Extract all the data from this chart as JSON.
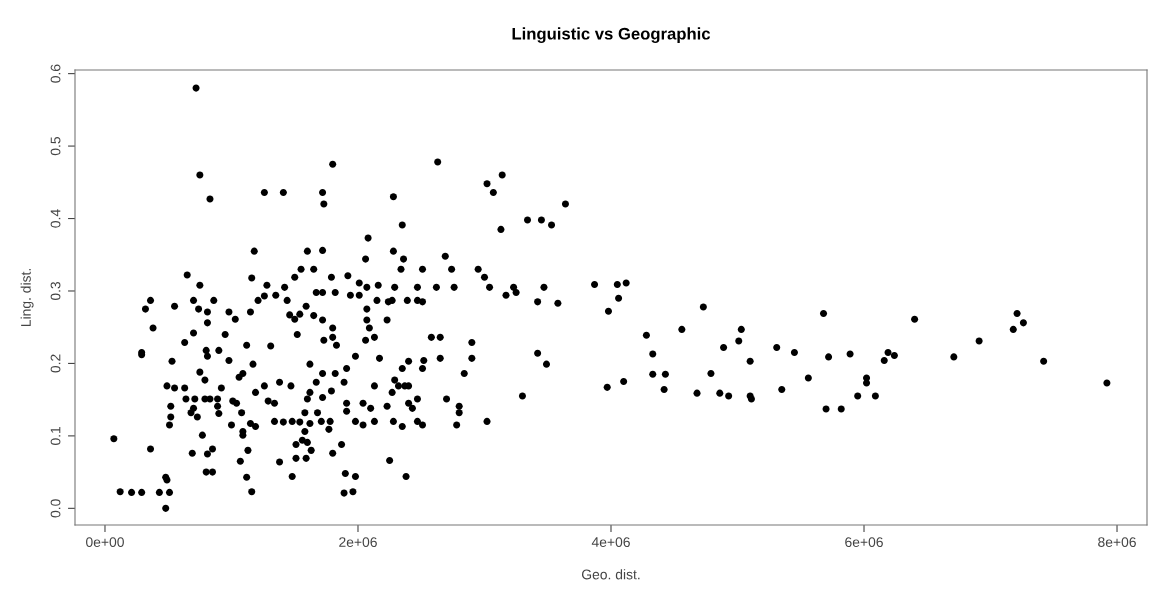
{
  "chart_data": {
    "type": "scatter",
    "title": "Linguistic vs Geographic",
    "xlabel": "Geo. dist.",
    "ylabel": "Ling. dist.",
    "xlim": [
      -237000,
      8237000
    ],
    "ylim": [
      -0.023,
      0.605
    ],
    "xticks": [
      {
        "value": 0,
        "label": "0e+00"
      },
      {
        "value": 2000000,
        "label": "2e+06"
      },
      {
        "value": 4000000,
        "label": "4e+06"
      },
      {
        "value": 6000000,
        "label": "6e+06"
      },
      {
        "value": 8000000,
        "label": "8e+06"
      }
    ],
    "yticks": [
      {
        "value": 0,
        "label": "0.0"
      },
      {
        "value": 0.1,
        "label": "0.1"
      },
      {
        "value": 0.2,
        "label": "0.2"
      },
      {
        "value": 0.3,
        "label": "0.3"
      },
      {
        "value": 0.4,
        "label": "0.4"
      },
      {
        "value": 0.5,
        "label": "0.5"
      },
      {
        "value": 0.6,
        "label": "0.6"
      }
    ],
    "grid": false,
    "marker": "circle",
    "series": [
      {
        "color": "#000000",
        "x": [
          720000,
          750000,
          830000,
          1260000,
          1410000,
          1720000,
          1730000,
          1180000,
          1600000,
          1720000,
          1550000,
          1650000,
          650000,
          750000,
          1160000,
          1280000,
          1500000,
          1420000,
          360000,
          320000,
          700000,
          860000,
          550000,
          740000,
          810000,
          980000,
          1030000,
          1150000,
          1210000,
          1260000,
          1350000,
          1440000,
          1590000,
          1670000,
          1720000,
          1650000,
          1720000,
          1460000,
          1500000,
          1540000,
          810000,
          380000,
          700000,
          630000,
          950000,
          1520000,
          1730000,
          1120000,
          1310000,
          290000,
          290000,
          530000,
          800000,
          810000,
          900000,
          980000,
          1170000,
          1620000,
          1720000,
          750000,
          790000,
          1090000,
          1060000,
          490000,
          550000,
          630000,
          920000,
          1260000,
          1380000,
          1470000,
          1670000,
          1190000,
          1620000,
          640000,
          710000,
          790000,
          830000,
          890000,
          1010000,
          1290000,
          1340000,
          1600000,
          1720000,
          520000,
          700000,
          890000,
          1040000,
          680000,
          900000,
          520000,
          730000,
          1080000,
          1580000,
          1680000,
          1340000,
          1410000,
          1480000,
          1540000,
          1620000,
          1710000,
          510000,
          1000000,
          1150000,
          1190000,
          1580000,
          1090000,
          1090000,
          770000,
          70000,
          1560000,
          1600000,
          1510000,
          360000,
          690000,
          850000,
          810000,
          1130000,
          1630000,
          1070000,
          1380000,
          1510000,
          1590000,
          800000,
          850000,
          1120000,
          1480000,
          480000,
          490000,
          120000,
          210000,
          290000,
          430000,
          510000,
          1160000,
          480000,
          1800000,
          2280000,
          2630000,
          3020000,
          3070000,
          3140000,
          2350000,
          3130000,
          3340000,
          3450000,
          2080000,
          2280000,
          2060000,
          2360000,
          2690000,
          2340000,
          2510000,
          2740000,
          2950000,
          3000000,
          3040000,
          1790000,
          1920000,
          2010000,
          2070000,
          2160000,
          2290000,
          2470000,
          2620000,
          2760000,
          3230000,
          3250000,
          3170000,
          3470000,
          3420000,
          1820000,
          1940000,
          2010000,
          2150000,
          2240000,
          2270000,
          2390000,
          2470000,
          2510000,
          1800000,
          2070000,
          2070000,
          2090000,
          2230000,
          1800000,
          1830000,
          2060000,
          2130000,
          2580000,
          2650000,
          2900000,
          1980000,
          2170000,
          2400000,
          2520000,
          2650000,
          2900000,
          3420000,
          3490000,
          2350000,
          2510000,
          1910000,
          2840000,
          1820000,
          1890000,
          2130000,
          2290000,
          2320000,
          2370000,
          2400000,
          2270000,
          1790000,
          2700000,
          2470000,
          3300000,
          1910000,
          2040000,
          2100000,
          2230000,
          2400000,
          2430000,
          2800000,
          2800000,
          1910000,
          1780000,
          1980000,
          2130000,
          2280000,
          2470000,
          2510000,
          2040000,
          2350000,
          2780000,
          3020000,
          1770000,
          1870000,
          1800000,
          2250000,
          1900000,
          1980000,
          2380000,
          1890000,
          1960000,
          3530000,
          3640000,
          3580000,
          3870000,
          4050000,
          4120000,
          4060000,
          3980000,
          3970000,
          4100000,
          4280000,
          4330000,
          4330000,
          4430000,
          4420000,
          4560000,
          4730000,
          4790000,
          4890000,
          4680000,
          4860000,
          4930000,
          5010000,
          5030000,
          5100000,
          5100000,
          5110000,
          5310000,
          5450000,
          5350000,
          5560000,
          5680000,
          5720000,
          5700000,
          5820000,
          5890000,
          5950000,
          6020000,
          6020000,
          6090000,
          6160000,
          6190000,
          6240000,
          6400000,
          6710000,
          6910000,
          7180000,
          7210000,
          7260000,
          7420000,
          7920000
        ],
        "values": [
          0.58,
          0.46,
          0.427,
          0.436,
          0.436,
          0.436,
          0.42,
          0.355,
          0.355,
          0.356,
          0.33,
          0.33,
          0.322,
          0.308,
          0.318,
          0.308,
          0.319,
          0.305,
          0.287,
          0.275,
          0.287,
          0.287,
          0.279,
          0.275,
          0.271,
          0.271,
          0.261,
          0.271,
          0.287,
          0.293,
          0.294,
          0.287,
          0.279,
          0.298,
          0.298,
          0.266,
          0.26,
          0.267,
          0.261,
          0.268,
          0.256,
          0.249,
          0.242,
          0.229,
          0.24,
          0.24,
          0.232,
          0.225,
          0.224,
          0.215,
          0.212,
          0.203,
          0.218,
          0.21,
          0.218,
          0.204,
          0.199,
          0.199,
          0.186,
          0.188,
          0.177,
          0.186,
          0.181,
          0.169,
          0.166,
          0.166,
          0.166,
          0.169,
          0.174,
          0.169,
          0.174,
          0.16,
          0.16,
          0.151,
          0.151,
          0.151,
          0.151,
          0.151,
          0.148,
          0.148,
          0.145,
          0.151,
          0.153,
          0.141,
          0.138,
          0.141,
          0.145,
          0.132,
          0.131,
          0.126,
          0.126,
          0.132,
          0.132,
          0.132,
          0.12,
          0.119,
          0.12,
          0.119,
          0.117,
          0.12,
          0.115,
          0.115,
          0.117,
          0.113,
          0.106,
          0.106,
          0.101,
          0.101,
          0.096,
          0.094,
          0.091,
          0.088,
          0.082,
          0.076,
          0.082,
          0.075,
          0.08,
          0.08,
          0.065,
          0.064,
          0.069,
          0.069,
          0.05,
          0.05,
          0.043,
          0.044,
          0.043,
          0.039,
          0.023,
          0.022,
          0.022,
          0.022,
          0.022,
          0.023,
          0.0,
          0.475,
          0.43,
          0.478,
          0.448,
          0.436,
          0.46,
          0.391,
          0.385,
          0.398,
          0.398,
          0.373,
          0.355,
          0.344,
          0.344,
          0.348,
          0.33,
          0.33,
          0.33,
          0.33,
          0.319,
          0.305,
          0.319,
          0.321,
          0.311,
          0.305,
          0.308,
          0.305,
          0.305,
          0.305,
          0.305,
          0.305,
          0.298,
          0.294,
          0.305,
          0.285,
          0.298,
          0.294,
          0.294,
          0.287,
          0.285,
          0.287,
          0.287,
          0.287,
          0.285,
          0.249,
          0.275,
          0.26,
          0.249,
          0.26,
          0.236,
          0.225,
          0.232,
          0.236,
          0.236,
          0.236,
          0.229,
          0.21,
          0.207,
          0.203,
          0.204,
          0.207,
          0.207,
          0.214,
          0.199,
          0.193,
          0.193,
          0.193,
          0.186,
          0.186,
          0.174,
          0.169,
          0.177,
          0.169,
          0.169,
          0.169,
          0.16,
          0.162,
          0.151,
          0.151,
          0.155,
          0.145,
          0.145,
          0.138,
          0.141,
          0.145,
          0.138,
          0.141,
          0.132,
          0.134,
          0.12,
          0.12,
          0.12,
          0.12,
          0.12,
          0.115,
          0.115,
          0.113,
          0.115,
          0.12,
          0.109,
          0.088,
          0.076,
          0.066,
          0.048,
          0.044,
          0.044,
          0.021,
          0.023,
          0.391,
          0.42,
          0.283,
          0.309,
          0.309,
          0.311,
          0.29,
          0.272,
          0.167,
          0.175,
          0.239,
          0.213,
          0.185,
          0.185,
          0.164,
          0.247,
          0.278,
          0.186,
          0.222,
          0.159,
          0.159,
          0.155,
          0.231,
          0.247,
          0.203,
          0.155,
          0.151,
          0.222,
          0.215,
          0.164,
          0.18,
          0.269,
          0.209,
          0.137,
          0.137,
          0.213,
          0.155,
          0.18,
          0.173,
          0.155,
          0.204,
          0.215,
          0.211,
          0.261,
          0.209,
          0.231,
          0.247,
          0.269,
          0.256,
          0.203,
          0.173
        ]
      }
    ]
  }
}
